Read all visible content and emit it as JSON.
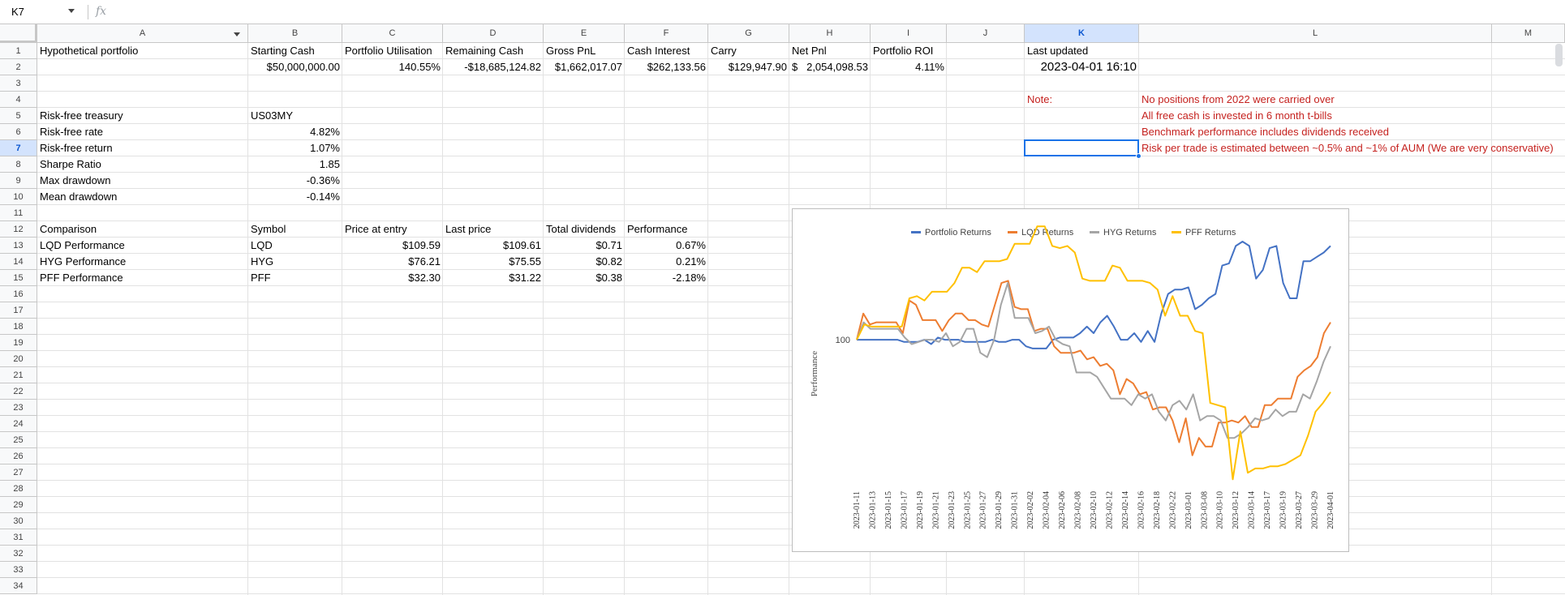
{
  "formula_bar": {
    "name_box": "K7",
    "fx": "fx",
    "formula": ""
  },
  "columns": [
    "A",
    "B",
    "C",
    "D",
    "E",
    "F",
    "G",
    "H",
    "I",
    "J",
    "K",
    "L",
    "M"
  ],
  "rows": [
    "1",
    "2",
    "3",
    "4",
    "5",
    "6",
    "7",
    "8",
    "9",
    "10",
    "11",
    "12",
    "13",
    "14",
    "15",
    "16",
    "17",
    "18",
    "19",
    "20",
    "21",
    "22",
    "23",
    "24",
    "25",
    "26",
    "27",
    "28",
    "29",
    "30",
    "31",
    "32",
    "33",
    "34"
  ],
  "selected_cell": "K7",
  "sheet": {
    "row1": {
      "a": "Hypothetical  portfolio",
      "b": "Starting Cash",
      "c": "Portfolio Utilisation",
      "d": "Remaining Cash",
      "e": "Gross PnL",
      "f": "Cash Interest",
      "g": "Carry",
      "h": "Net Pnl",
      "i": "Portfolio ROI",
      "k": "Last updated"
    },
    "row2": {
      "b": "$50,000,000.00",
      "c": "140.55%",
      "d": "-$18,685,124.82",
      "e": "$1,662,017.07",
      "f": "$262,133.56",
      "g": "$129,947.90",
      "h_sym": "$",
      "h": "2,054,098.53",
      "i": "4.11%",
      "k": "2023-04-01 16:10"
    },
    "notes": {
      "label": "Note:",
      "lines": [
        "No positions from 2022 were carried over",
        "All free cash is invested in 6 month t-bills",
        "Benchmark performance includes dividends received",
        "Risk per trade is estimated between ~0.5% and ~1% of AUM (We are very conservative)"
      ]
    },
    "risk": [
      {
        "label": "Risk-free treasury",
        "value": "US03MY"
      },
      {
        "label": "Risk-free rate",
        "value": "4.82%"
      },
      {
        "label": "Risk-free return",
        "value": "1.07%"
      },
      {
        "label": "Sharpe Ratio",
        "value": "1.85"
      },
      {
        "label": "Max drawdown",
        "value": "-0.36%"
      },
      {
        "label": "Mean drawdown",
        "value": "-0.14%"
      }
    ],
    "comparison": {
      "headers": [
        "Comparison",
        "Symbol",
        "Price at entry",
        "Last price",
        "Total dividends",
        "Performance"
      ],
      "rows": [
        [
          "LQD Performance",
          "LQD",
          "$109.59",
          "$109.61",
          "$0.71",
          "0.67%"
        ],
        [
          "HYG Performance",
          "HYG",
          "$76.21",
          "$75.55",
          "$0.82",
          "0.21%"
        ],
        [
          "PFF Performance",
          "PFF",
          "$32.30",
          "$31.22",
          "$0.38",
          "-2.18%"
        ]
      ]
    }
  },
  "chart_data": {
    "type": "line",
    "title": "",
    "xlabel": "",
    "ylabel": "Performance",
    "y_ticks": [
      100
    ],
    "ylim": [
      93.5,
      104.5
    ],
    "legend_position": "top",
    "x_tick_labels": [
      "2023-01-11",
      "2023-01-13",
      "2023-01-15",
      "2023-01-17",
      "2023-01-19",
      "2023-01-21",
      "2023-01-23",
      "2023-01-25",
      "2023-01-27",
      "2023-01-29",
      "2023-01-31",
      "2023-02-02",
      "2023-02-04",
      "2023-02-06",
      "2023-02-08",
      "2023-02-10",
      "2023-02-12",
      "2023-02-14",
      "2023-02-16",
      "2023-02-18",
      "2023-02-22",
      "2023-03-01",
      "2023-03-08",
      "2023-03-10",
      "2023-03-12",
      "2023-03-14",
      "2023-03-17",
      "2023-03-19",
      "2023-03-27",
      "2023-03-29",
      "2023-04-01"
    ],
    "series": [
      {
        "name": "Portfolio Returns",
        "color": "#4472c4",
        "values": [
          100,
          100,
          100,
          100,
          100,
          100,
          100,
          99.9,
          99.9,
          99.9,
          100,
          99.8,
          100.1,
          100,
          100,
          100,
          99.9,
          99.9,
          99.9,
          99.9,
          100,
          99.9,
          99.9,
          100,
          100,
          99.7,
          99.6,
          99.6,
          99.6,
          100,
          100.1,
          100.1,
          100.1,
          100.3,
          100.6,
          100.3,
          100.8,
          101.1,
          100.6,
          100,
          100,
          100.3,
          99.9,
          100.4,
          99.9,
          101.2,
          102.1,
          102.3,
          102.3,
          102.4,
          101.4,
          101.6,
          101.9,
          102.1,
          103.4,
          103.5,
          104.3,
          104.5,
          104.3,
          102.8,
          103.2,
          104.2,
          104.3,
          102.6,
          101.9,
          101.9,
          103.6,
          103.6,
          103.8,
          104,
          104.3
        ]
      },
      {
        "name": "LQD Returns",
        "color": "#ed7d31",
        "values": [
          100,
          101.2,
          100.7,
          100.8,
          100.8,
          100.8,
          100.8,
          100.3,
          101.8,
          101.6,
          100.9,
          100.9,
          100.9,
          100.4,
          100.9,
          101.2,
          101.2,
          100.9,
          100.9,
          100.7,
          100.6,
          101.6,
          102.6,
          102.7,
          101.5,
          101.4,
          101.4,
          100.4,
          100.5,
          100.5,
          99.7,
          99.4,
          99.4,
          99.4,
          99.5,
          99.1,
          99.2,
          98.8,
          98.9,
          98.6,
          97.5,
          98.2,
          98,
          97.5,
          97.6,
          96.8,
          96.9,
          96.9,
          96.3,
          95.3,
          96.4,
          94.7,
          95.5,
          95.1,
          95.1,
          96.2,
          96.2,
          96.3,
          96.2,
          96.5,
          96,
          96,
          97,
          97,
          97.3,
          97.3,
          97.3,
          98.3,
          98.6,
          98.8,
          99.2,
          100.3,
          100.8
        ]
      },
      {
        "name": "HYG Returns",
        "color": "#a5a5a5",
        "values": [
          100,
          100.8,
          100.5,
          100.5,
          100.5,
          100.5,
          100.5,
          100.1,
          99.8,
          99.9,
          100,
          100,
          99.9,
          100.3,
          99.7,
          99.9,
          100.5,
          100.5,
          99.4,
          99.2,
          100,
          101.6,
          102.6,
          101,
          101,
          101,
          100.3,
          100.4,
          100.6,
          100,
          99.8,
          99.7,
          98.5,
          98.5,
          98.5,
          98.3,
          97.8,
          97.3,
          97.3,
          97.3,
          97,
          97.5,
          97.3,
          97.5,
          96.7,
          96.3,
          97,
          97.2,
          96.8,
          97.5,
          96.3,
          96.5,
          96.5,
          96.3,
          95.5,
          95.5,
          95.7,
          96,
          96.4,
          96.3,
          96.4,
          96.8,
          96.5,
          96.7,
          96.7,
          97.5,
          97.3,
          98.1,
          99,
          99.7
        ]
      },
      {
        "name": "PFF Returns",
        "color": "#ffc000",
        "values": [
          100,
          100.7,
          100.6,
          100.6,
          100.6,
          100.6,
          100.6,
          101.9,
          102,
          101.8,
          102.2,
          102.2,
          102.2,
          102.6,
          103.3,
          103.3,
          103.1,
          103.6,
          103.6,
          103.6,
          103.7,
          104.4,
          104.4,
          104.4,
          105.2,
          105.2,
          104.3,
          104.2,
          104.3,
          104,
          102.8,
          102.7,
          102.7,
          102.7,
          103.4,
          103.3,
          102.7,
          102.7,
          102.7,
          102.6,
          102.3,
          101.1,
          102,
          101.1,
          101.1,
          100.4,
          100.3,
          97.1,
          97,
          96.9,
          93.6,
          95.8,
          93.9,
          94.1,
          94.1,
          94.2,
          94.2,
          94.3,
          94.5,
          94.7,
          95.6,
          96.7,
          97.1,
          97.6
        ]
      }
    ]
  }
}
